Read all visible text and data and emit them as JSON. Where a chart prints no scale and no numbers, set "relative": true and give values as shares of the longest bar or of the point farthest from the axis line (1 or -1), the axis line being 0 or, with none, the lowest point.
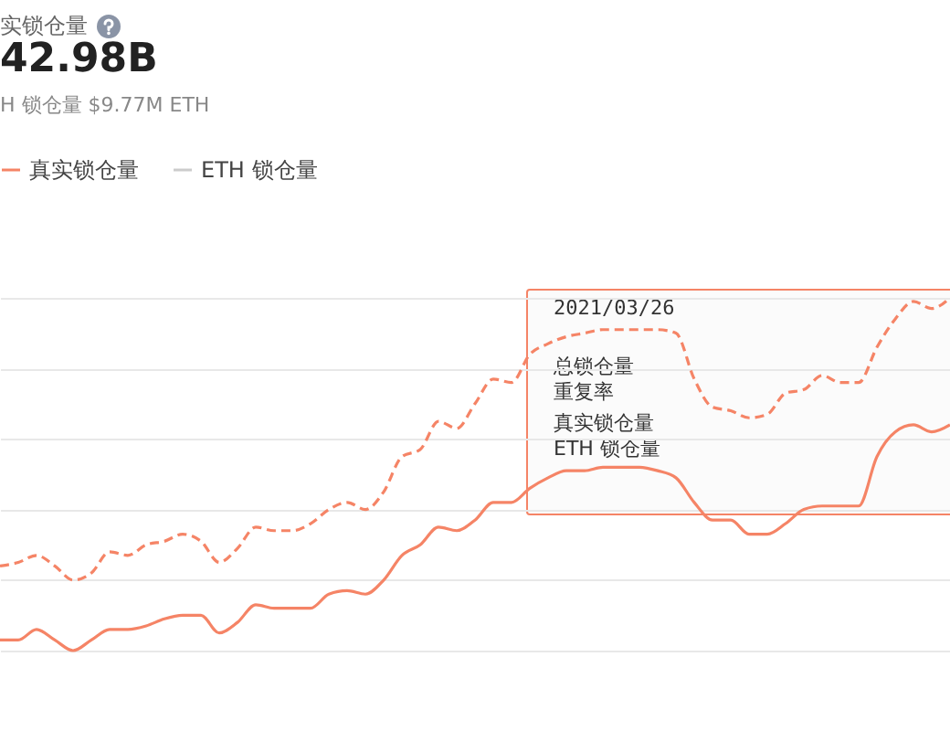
{
  "chart_data": {
    "type": "line",
    "title": "实锁仓量",
    "subtitle": "42.98B",
    "annotations": [
      "H 锁仓量 $9.77M ETH",
      "2021/03/26",
      "总锁仓量",
      "重复率",
      "真实锁仓量",
      "ETH 锁仓量"
    ],
    "categories": [
      null,
      null,
      null,
      null,
      null,
      null,
      null,
      null,
      null,
      null,
      null,
      null,
      null,
      null,
      null,
      null,
      null,
      null,
      null,
      null,
      null,
      null,
      null,
      null,
      null,
      null,
      null,
      null,
      null,
      null,
      null,
      null,
      null,
      null,
      null,
      null,
      null,
      null,
      null,
      null,
      null,
      null,
      null,
      null,
      null,
      null,
      null,
      null,
      null,
      null,
      null,
      null,
      null
    ],
    "relative": true,
    "grid": "y",
    "legend": "top left",
    "series": [
      {
        "color": "#f58466",
        "line_style": "dashed",
        "values": [
          0.24,
          0.25,
          0.27,
          0.24,
          0.2,
          0.22,
          0.28,
          0.27,
          0.3,
          0.31,
          0.33,
          0.31,
          0.25,
          0.29,
          0.35,
          0.34,
          0.34,
          0.36,
          0.4,
          0.42,
          0.4,
          0.45,
          0.55,
          0.57,
          0.65,
          0.63,
          0.7,
          0.77,
          0.76,
          0.84,
          0.87,
          0.89,
          0.9,
          0.91,
          0.91,
          0.91,
          0.91,
          0.9,
          0.77,
          0.69,
          0.68,
          0.66,
          0.67,
          0.73,
          0.74,
          0.78,
          0.76,
          0.76,
          0.86,
          0.94,
          0.99,
          0.97,
          1
        ]
      },
      {
        "name": "真实锁仓量",
        "color": "#f58466",
        "line_style": "solid",
        "values": [
          0.03,
          0.03,
          0.06,
          0.03,
          0,
          0.03,
          0.06,
          0.06,
          0.07,
          0.09,
          0.1,
          0.1,
          0.05,
          0.08,
          0.13,
          0.12,
          0.12,
          0.12,
          0.16,
          0.17,
          0.16,
          0.2,
          0.27,
          0.3,
          0.35,
          0.34,
          0.37,
          0.42,
          0.42,
          0.46,
          0.49,
          0.51,
          0.51,
          0.52,
          0.52,
          0.52,
          0.51,
          0.49,
          0.42,
          0.37,
          0.37,
          0.33,
          0.33,
          0.36,
          0.4,
          0.41,
          0.41,
          0.41,
          0.55,
          0.62,
          0.64,
          0.62,
          0.64
        ]
      },
      {
        "name": "ETH 锁仓量",
        "color": "#cccccc",
        "line_style": "solid",
        "values": [
          null,
          null,
          null,
          null,
          null,
          null,
          null,
          null,
          null,
          null,
          null,
          null,
          null,
          null,
          null,
          null,
          null,
          null,
          null,
          null,
          null,
          null,
          null,
          null,
          null,
          null,
          null,
          null,
          null,
          null,
          null,
          null,
          null,
          null,
          null,
          null,
          null,
          null,
          null,
          null,
          null,
          null,
          null,
          null,
          null,
          null,
          null,
          null,
          null,
          null,
          null,
          null,
          null
        ]
      }
    ]
  }
}
